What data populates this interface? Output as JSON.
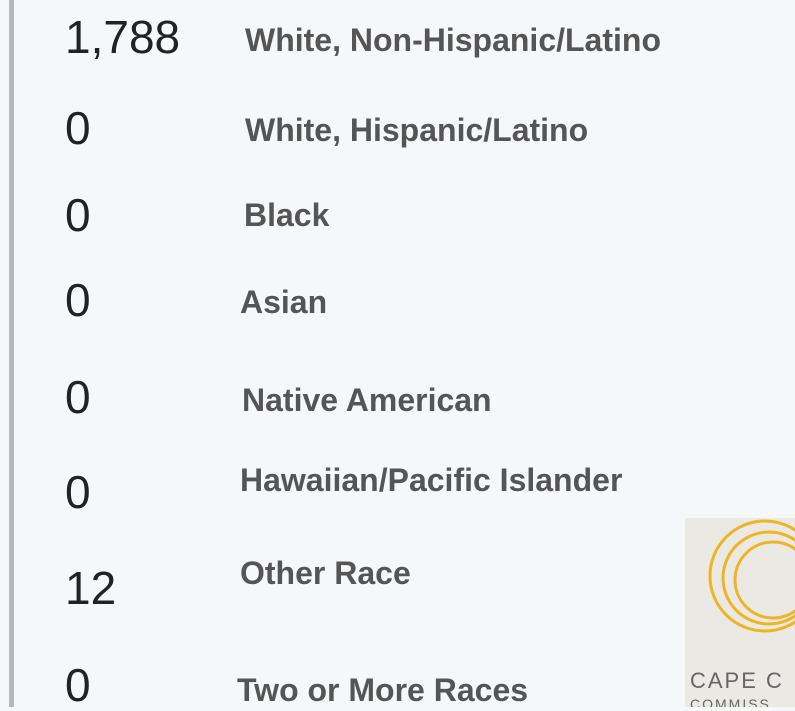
{
  "rows": [
    {
      "value": "1,788",
      "label": "White, Non-Hispanic/Latino"
    },
    {
      "value": "0",
      "label": "White, Hispanic/Latino"
    },
    {
      "value": "0",
      "label": "Black"
    },
    {
      "value": "0",
      "label": "Asian"
    },
    {
      "value": "0",
      "label": "Native American"
    },
    {
      "value": "0",
      "label": "Hawaiian/Pacific Islander"
    },
    {
      "value": "12",
      "label": "Other Race"
    },
    {
      "value": "0",
      "label": "Two or More Races"
    }
  ],
  "logo": {
    "line1": "CAPE C",
    "line2": "COMMISS"
  }
}
